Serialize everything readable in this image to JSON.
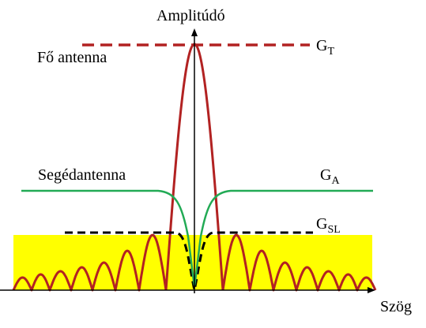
{
  "axes": {
    "y_label": "Amplitúdó",
    "x_label": "Szög"
  },
  "labels": {
    "main_antenna": "Fő antenna",
    "aux_antenna": "Segédantenna",
    "gt_base": "G",
    "gt_sub": "T",
    "ga_base": "G",
    "ga_sub": "A",
    "gsl_base": "G",
    "gsl_sub": "SL"
  },
  "colors": {
    "main_pattern": "#b22222",
    "main_reference_dashed": "#b22222",
    "aux_pattern": "#22aa55",
    "sidelobe_region_fill": "#ffff00",
    "gsl_dashed": "#000000",
    "axes": "#000000"
  }
}
